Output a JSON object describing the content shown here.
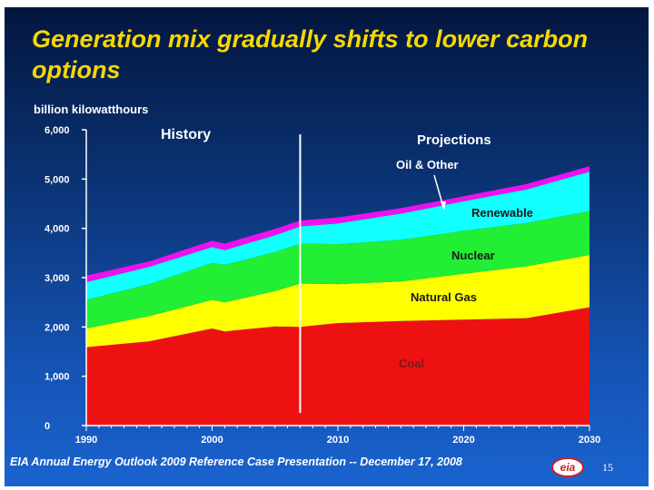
{
  "slide": {
    "title": "Generation mix gradually shifts to lower carbon options",
    "footer": "EIA Annual Energy Outlook 2009 Reference Case Presentation -- December 17, 2008",
    "page_number": "15",
    "logo_text": "eia"
  },
  "annotations": {
    "history": "History",
    "projections": "Projections",
    "oil_other": "Oil & Other",
    "renewable": "Renewable",
    "nuclear": "Nuclear",
    "natural_gas": "Natural Gas",
    "coal": "Coal"
  },
  "chart_data": {
    "type": "area",
    "stacked": true,
    "ylabel": "billion kilowatthours",
    "ylim": [
      0,
      6000
    ],
    "yticks": [
      0,
      1000,
      2000,
      3000,
      4000,
      5000,
      6000
    ],
    "ytick_labels": [
      "0",
      "1,000",
      "2,000",
      "3,000",
      "4,000",
      "5,000",
      "6,000"
    ],
    "xlim": [
      1990,
      2030
    ],
    "xticks": [
      1990,
      2000,
      2010,
      2020,
      2030
    ],
    "xtick_labels": [
      "1990",
      "2000",
      "2010",
      "2020",
      "2030"
    ],
    "history_end_year": 2007,
    "x": [
      1990,
      1995,
      2000,
      2001,
      2005,
      2007,
      2010,
      2015,
      2020,
      2025,
      2030
    ],
    "series": [
      {
        "name": "Coal",
        "color": "#ee1111",
        "values": [
          1590,
          1710,
          1970,
          1910,
          2010,
          2000,
          2080,
          2120,
          2150,
          2180,
          2400
        ]
      },
      {
        "name": "Natural Gas",
        "color": "#ffff00",
        "values": [
          380,
          510,
          580,
          590,
          720,
          880,
          790,
          800,
          930,
          1050,
          1060
        ]
      },
      {
        "name": "Nuclear",
        "color": "#22ee33",
        "values": [
          580,
          650,
          750,
          760,
          790,
          810,
          810,
          850,
          870,
          880,
          890
        ]
      },
      {
        "name": "Renewable",
        "color": "#11ffff",
        "values": [
          360,
          350,
          320,
          300,
          340,
          350,
          420,
          530,
          600,
          680,
          800
        ]
      },
      {
        "name": "Oil & Other",
        "color": "#ee11ee",
        "values": [
          130,
          110,
          130,
          130,
          130,
          120,
          120,
          110,
          100,
          110,
          110
        ]
      }
    ]
  }
}
